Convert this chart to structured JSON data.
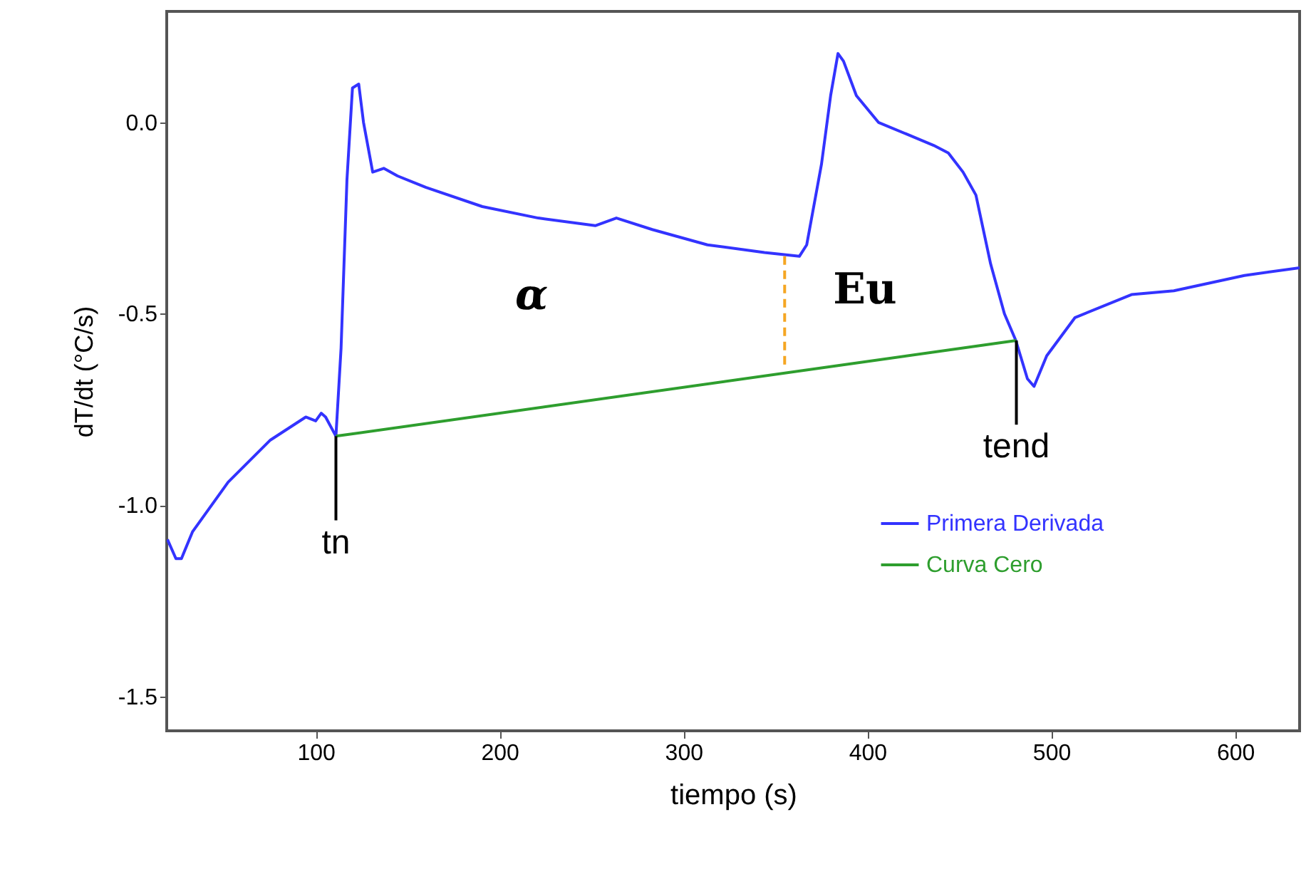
{
  "chart_data": {
    "type": "line",
    "xlabel": "tiempo (s)",
    "ylabel": "dT/dt (°C/s)",
    "xlim": [
      19,
      635
    ],
    "ylim": [
      -1.59,
      0.29
    ],
    "xticks": [
      100,
      200,
      300,
      400,
      500,
      600
    ],
    "yticks": [
      {
        "value": -1.5,
        "label": "-1.5"
      },
      {
        "value": -1.0,
        "label": "-1.0"
      },
      -0.5,
      {
        "value": 0.0,
        "label": "0.0"
      }
    ],
    "legend": "right",
    "grid": false,
    "series": [
      {
        "name": "Primera Derivada",
        "color": "#3333ff",
        "x": [
          19.4,
          24,
          27,
          33,
          52.4,
          75.4,
          94.6,
          100,
          103,
          105.4,
          111,
          113.8,
          117,
          120,
          123.4,
          126,
          131,
          137,
          144.5,
          160,
          190.6,
          221,
          252,
          263.5,
          283,
          313,
          344,
          363,
          367,
          375,
          380,
          384,
          387,
          394,
          406,
          421,
          436,
          444,
          452,
          459,
          467,
          474.5,
          480.7,
          487,
          490.6,
          497.5,
          512.9,
          543.6,
          566.6,
          585.8,
          605,
          635
        ],
        "values": [
          -1.09,
          -1.14,
          -1.14,
          -1.07,
          -0.94,
          -0.83,
          -0.77,
          -0.78,
          -0.76,
          -0.77,
          -0.82,
          -0.59,
          -0.15,
          0.09,
          0.1,
          0.0,
          -0.13,
          -0.12,
          -0.14,
          -0.17,
          -0.22,
          -0.25,
          -0.27,
          -0.25,
          -0.28,
          -0.32,
          -0.34,
          -0.35,
          -0.32,
          -0.11,
          0.07,
          0.18,
          0.16,
          0.07,
          0.0,
          -0.03,
          -0.06,
          -0.08,
          -0.13,
          -0.19,
          -0.37,
          -0.5,
          -0.57,
          -0.67,
          -0.69,
          -0.61,
          -0.51,
          -0.45,
          -0.44,
          -0.42,
          -0.4,
          -0.38
        ]
      },
      {
        "name": "Curva Cero",
        "color": "#2e9e2e",
        "x": [
          111,
          481
        ],
        "values": [
          -0.82,
          -0.57
        ]
      },
      {
        "color": "#f5a623",
        "line_style": "dashed",
        "x": [
          355,
          355
        ],
        "values": [
          -0.35,
          -0.64
        ]
      },
      {
        "color": "#000000",
        "x": [
          111,
          111
        ],
        "values": [
          -0.82,
          -1.04
        ]
      },
      {
        "color": "#000000",
        "x": [
          481,
          481
        ],
        "values": [
          -0.57,
          -0.79
        ]
      }
    ],
    "annotations": [
      "α",
      "Eu",
      {
        "text": "tn",
        "x": 111,
        "y": -1.04
      },
      {
        "text": "tend",
        "x": 481,
        "y": -0.79
      }
    ]
  }
}
